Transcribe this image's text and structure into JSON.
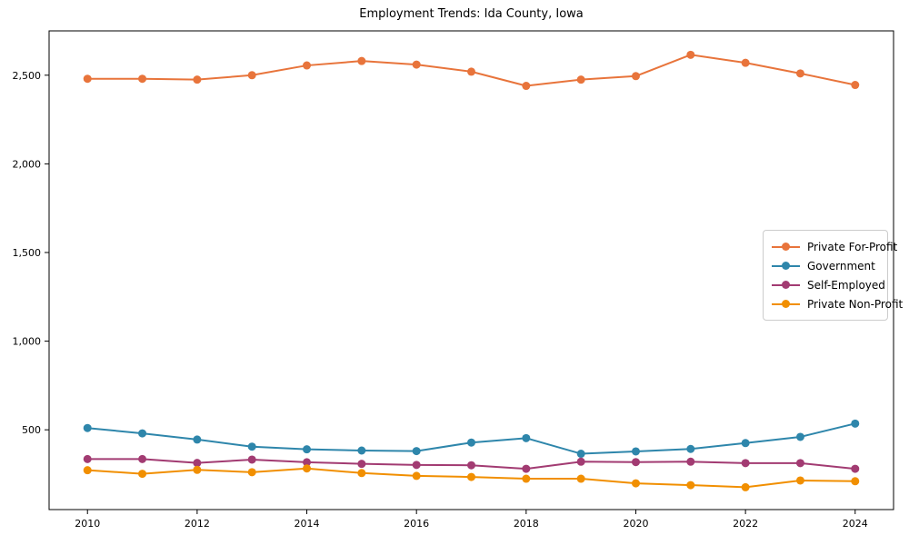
{
  "chart_data": {
    "type": "line",
    "title": "Employment Trends: Ida County, Iowa",
    "xlabel": "",
    "ylabel": "",
    "x": [
      2010,
      2011,
      2012,
      2013,
      2014,
      2015,
      2016,
      2017,
      2018,
      2019,
      2020,
      2021,
      2022,
      2023,
      2024
    ],
    "series": [
      {
        "name": "Private For-Profit",
        "color": "#E8743B",
        "values": [
          2480,
          2480,
          2475,
          2500,
          2555,
          2580,
          2560,
          2520,
          2440,
          2475,
          2495,
          2615,
          2570,
          2510,
          2445
        ]
      },
      {
        "name": "Government",
        "color": "#2E86AB",
        "values": [
          510,
          480,
          445,
          405,
          390,
          383,
          380,
          428,
          453,
          365,
          378,
          392,
          425,
          460,
          535
        ]
      },
      {
        "name": "Self-Employed",
        "color": "#A23B72",
        "values": [
          335,
          335,
          313,
          332,
          317,
          308,
          302,
          300,
          280,
          320,
          318,
          320,
          312,
          312,
          280
        ]
      },
      {
        "name": "Private Non-Profit",
        "color": "#F18F01",
        "values": [
          272,
          252,
          274,
          261,
          282,
          256,
          240,
          234,
          224,
          224,
          198,
          188,
          176,
          214,
          210
        ]
      }
    ],
    "xticks": [
      {
        "value": 2010,
        "label": "2010"
      },
      {
        "value": 2012,
        "label": "2012"
      },
      {
        "value": 2014,
        "label": "2014"
      },
      {
        "value": 2016,
        "label": "2016"
      },
      {
        "value": 2018,
        "label": "2018"
      },
      {
        "value": 2020,
        "label": "2020"
      },
      {
        "value": 2022,
        "label": "2022"
      },
      {
        "value": 2024,
        "label": "2024"
      }
    ],
    "yticks": [
      {
        "value": 500,
        "label": "500"
      },
      {
        "value": 1000,
        "label": "1,000"
      },
      {
        "value": 1500,
        "label": "1,500"
      },
      {
        "value": 2000,
        "label": "2,000"
      },
      {
        "value": 2500,
        "label": "2,500"
      }
    ],
    "xlim": [
      2009.3,
      2024.7
    ],
    "ylim": [
      50,
      2750
    ],
    "grid": false,
    "legend_position": "center right",
    "axis_color": "#000000",
    "background_color": "#ffffff"
  }
}
